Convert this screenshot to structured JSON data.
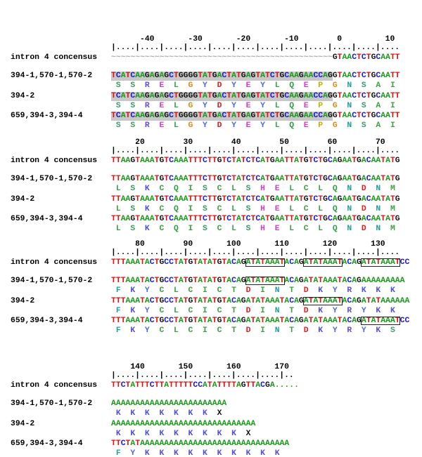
{
  "blocks": [
    {
      "ruler_numbers": "      -40       -30       -20       -10        0         10",
      "ruler_ticks": "|....|....|....|....|....|....|....|....|....|....|....|....",
      "rows": [
        {
          "label": "intron 4 concensus",
          "sequence": "~~~~~~~~~~~~~~~~~~~~~~~~~~~~~~~~~~~~~~~~~~~~~~GTAACTCTGCAATT"
        },
        {
          "label": "394-1,570-1,570-2",
          "sequence": "TCATCAAGAGAGCTGGGGTATGACTATGAGTATCTGCAAGAACCAGGTAACTCTGCAATT",
          "translation": " S  S  R  E  L  G  Y  D  Y  E  Y  L  Q  E  P  G  N  S  A  I"
        },
        {
          "label": "394-2",
          "sequence": "TCATCAAGAGAGCTGGGGTATGACTATGAGTATCTGCAAGAACCAGGTAACTCTGCAATT",
          "translation": " S  S  R  E  L  G  Y  D  Y  E  Y  L  Q  E  P  G  N  S  A  I"
        },
        {
          "label": "659,394-3,394-4",
          "sequence": "TCATCAAGAGAGCTGGGGTATGACTATGAGTATCTGCAAGAACCAGGTAACTCTGCAATT",
          "translation": " S  S  R  E  L  G  Y  D  Y  E  Y  L  Q  E  P  G  N  S  A  I"
        }
      ]
    },
    {
      "ruler_numbers": "     20        30        40        50        60        70",
      "ruler_ticks": "|....|....|....|....|....|....|....|....|....|....|....|....",
      "rows": [
        {
          "label": "intron 4 concensus",
          "sequence": "TTAAGTAAATGTCAAATTTCTTGTCTATCTCATGAATTATGTCTGCAGAATGACAATATG"
        },
        {
          "label": "394-1,570-1,570-2",
          "sequence": "TTAAGTAAATGTCAAATTTCTTGTCTATCTCATGAATTATGTCTGCAGAATGACAATATG",
          "translation": " L  S  K  C  Q  I  S  C  L  S  H  E  L  C  L  Q  N  D  N  M"
        },
        {
          "label": "394-2",
          "sequence": "TTAAGTAAATGTCAAATTTCTTGTCTATCTCATGAATTATGTCTGCAGAATGACAATATG",
          "translation": " L  S  K  C  Q  I  S  C  L  S  H  E  L  C  L  Q  N  D  N  M"
        },
        {
          "label": "659,394-3,394-4",
          "sequence": "TTAAGTAAATGTCAAATTTCTTGTCTATCTCATGAATTATGTCTGCAGAATGACAATATG",
          "translation": " L  S  K  C  Q  I  S  C  L  S  H  E  L  C  L  Q  N  D  N  M"
        }
      ]
    },
    {
      "ruler_numbers": "     80        90       100       110       120       130",
      "ruler_ticks": "|....|....|....|....|....|....|....|....|....|....|....|....",
      "rows": [
        {
          "label": "intron 4 concensus",
          "sequence": "TTTAAATACTGCCTATGTATATGTACAGATATAAATACAGATATAAATACAGATATAAATCC"
        },
        {
          "label": "394-1,570-1,570-2",
          "sequence": "TTTAAATACTGCCTATGTATATGTACAGATATAAATACAGATATAAATACAGAAAAAAAAA",
          "translation": " F  K  Y  C  L  C  I  C  T  D  I  N  T  D  K  Y  R  K  K  K"
        },
        {
          "label": "394-2",
          "sequence": "TTTAAATACTGCCTATGTATATGTACAGATATAAATACAGATATAAATACAGATATAAAAAA",
          "translation": " F  K  Y  C  L  C  I  C  T  D  I  N  T  D  K  Y  R  Y  K  K"
        },
        {
          "label": "659,394-3,394-4",
          "sequence": "TTTAAATACTGCCTATGTATATGTACAGATATAAATACAGATATAAATACAGATATAAATCC",
          "translation": " F  K  Y  C  L  C  I  C  T  D  I  N  T  D  K  Y  R  Y  K  S"
        }
      ]
    },
    {
      "ruler_numbers": "    140       150       160       170",
      "ruler_ticks": "|....|....|....|....|....|....|....|..",
      "rows": [
        {
          "label": "intron 4 concensus",
          "sequence": "TTCTATTTCTTATTTTTCCATATTTTAGTTACGA....."
        },
        {
          "label": "394-1,570-1,570-2",
          "sequence": "AAAAAAAAAAAAAAAAAAAAAAAA",
          "translation": " K  K  K  K  K  K  K  X"
        },
        {
          "label": "394-2",
          "sequence": "AAAAAAAAAAAAAAAAAAAAAAAAAAAAAA",
          "translation": " K  K  K  K  K  K  K  K  K  X"
        },
        {
          "label": "659,394-3,394-4",
          "sequence": "TTCTATAAAAAAAAAAAAAAAAAAAAAAAAAAAAAAA",
          "translation": " F  Y  K  K  K  K  K  K  K  K  K  K"
        }
      ]
    }
  ]
}
